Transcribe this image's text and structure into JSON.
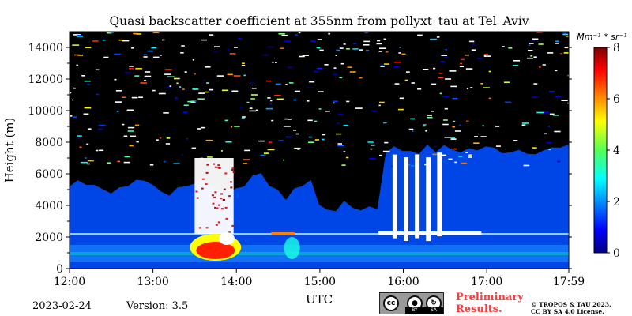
{
  "chart_data": {
    "type": "heatmap",
    "title": "Quasi backscatter coefficient at 355nm from pollyxt_tau at Tel_Aviv",
    "ylabel": "Height (m)",
    "xlabel": "UTC",
    "x_ticks": [
      "12:00",
      "13:00",
      "14:00",
      "15:00",
      "16:00",
      "17:00",
      "17:59"
    ],
    "y_ticks": [
      0,
      2000,
      4000,
      6000,
      8000,
      10000,
      12000,
      14000
    ],
    "ylim": [
      0,
      15000
    ],
    "xlim": [
      "12:00",
      "17:59"
    ],
    "colorbar": {
      "label": "Mm⁻¹ * sr⁻¹",
      "ticks": [
        0,
        2,
        4,
        6,
        8
      ],
      "range": [
        0,
        8
      ],
      "colormap": "jet"
    },
    "features": [
      {
        "name": "dense aerosol plume",
        "time_start": "13:30",
        "time_end": "14:00",
        "height_from": 500,
        "height_to": 2200,
        "value": 8
      },
      {
        "name": "cloud column",
        "time_start": "13:30",
        "time_end": "13:58",
        "height_from": 2200,
        "height_to": 7000,
        "value": 9
      },
      {
        "name": "cloud columns",
        "time_start": "15:50",
        "time_end": "16:30",
        "height_from": 2200,
        "height_to": 7500,
        "value": 9
      },
      {
        "name": "boundary layer",
        "time_start": "12:00",
        "time_end": "17:59",
        "height_from": 0,
        "height_to": 2200,
        "value": 2
      }
    ]
  },
  "footer": {
    "date": "2023-02-24",
    "version": "Version: 3.5",
    "license_badge": {
      "cc": "cc",
      "by": "BY",
      "sa": "SA"
    },
    "preliminary": [
      "Preliminary",
      "Results."
    ],
    "copyright": [
      "© TROPOS & TAU 2023.",
      "CC BY SA 4.0 License."
    ]
  },
  "colors": {
    "background_signal": "#0046e6",
    "noise_region": "#000000",
    "cloud": "#ffffff",
    "plume_peak": "#ff2000"
  }
}
